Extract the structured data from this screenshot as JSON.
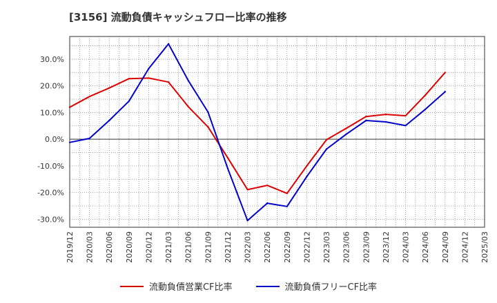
{
  "chart_data": {
    "type": "line",
    "title": "[3156]  流動負債キャッシュフロー比率の推移",
    "x": [
      "2019/12",
      "2020/03",
      "2020/06",
      "2020/09",
      "2020/12",
      "2021/03",
      "2021/06",
      "2021/09",
      "2021/12",
      "2022/03",
      "2022/06",
      "2022/09",
      "2022/12",
      "2023/03",
      "2023/06",
      "2023/09",
      "2023/12",
      "2024/03",
      "2024/06",
      "2024/09",
      "2024/12",
      "2025/03"
    ],
    "series": [
      {
        "name": "流動負債営業CF比率",
        "color": "#dd0000",
        "values": [
          12.0,
          16.0,
          19.2,
          22.7,
          22.9,
          21.4,
          12.2,
          4.6,
          -7.0,
          -18.9,
          -17.3,
          -20.3,
          -10.0,
          -0.2,
          4.1,
          8.5,
          9.3,
          8.8,
          16.5,
          25.0,
          null,
          null
        ]
      },
      {
        "name": "流動負債フリーCF比率",
        "color": "#0000cc",
        "values": [
          -1.2,
          0.3,
          7.0,
          14.3,
          26.5,
          35.7,
          22.0,
          10.2,
          -11.0,
          -30.5,
          -24.0,
          -25.2,
          -14.0,
          -3.7,
          1.9,
          7.0,
          6.5,
          5.1,
          11.2,
          17.8,
          null,
          null
        ]
      }
    ],
    "yticks": [
      -30,
      -20,
      -10,
      0,
      10,
      20,
      30
    ],
    "ylim": [
      -33,
      38.5
    ],
    "y_tick_suffix": "%",
    "grid": true,
    "legend_position": "bottom"
  }
}
